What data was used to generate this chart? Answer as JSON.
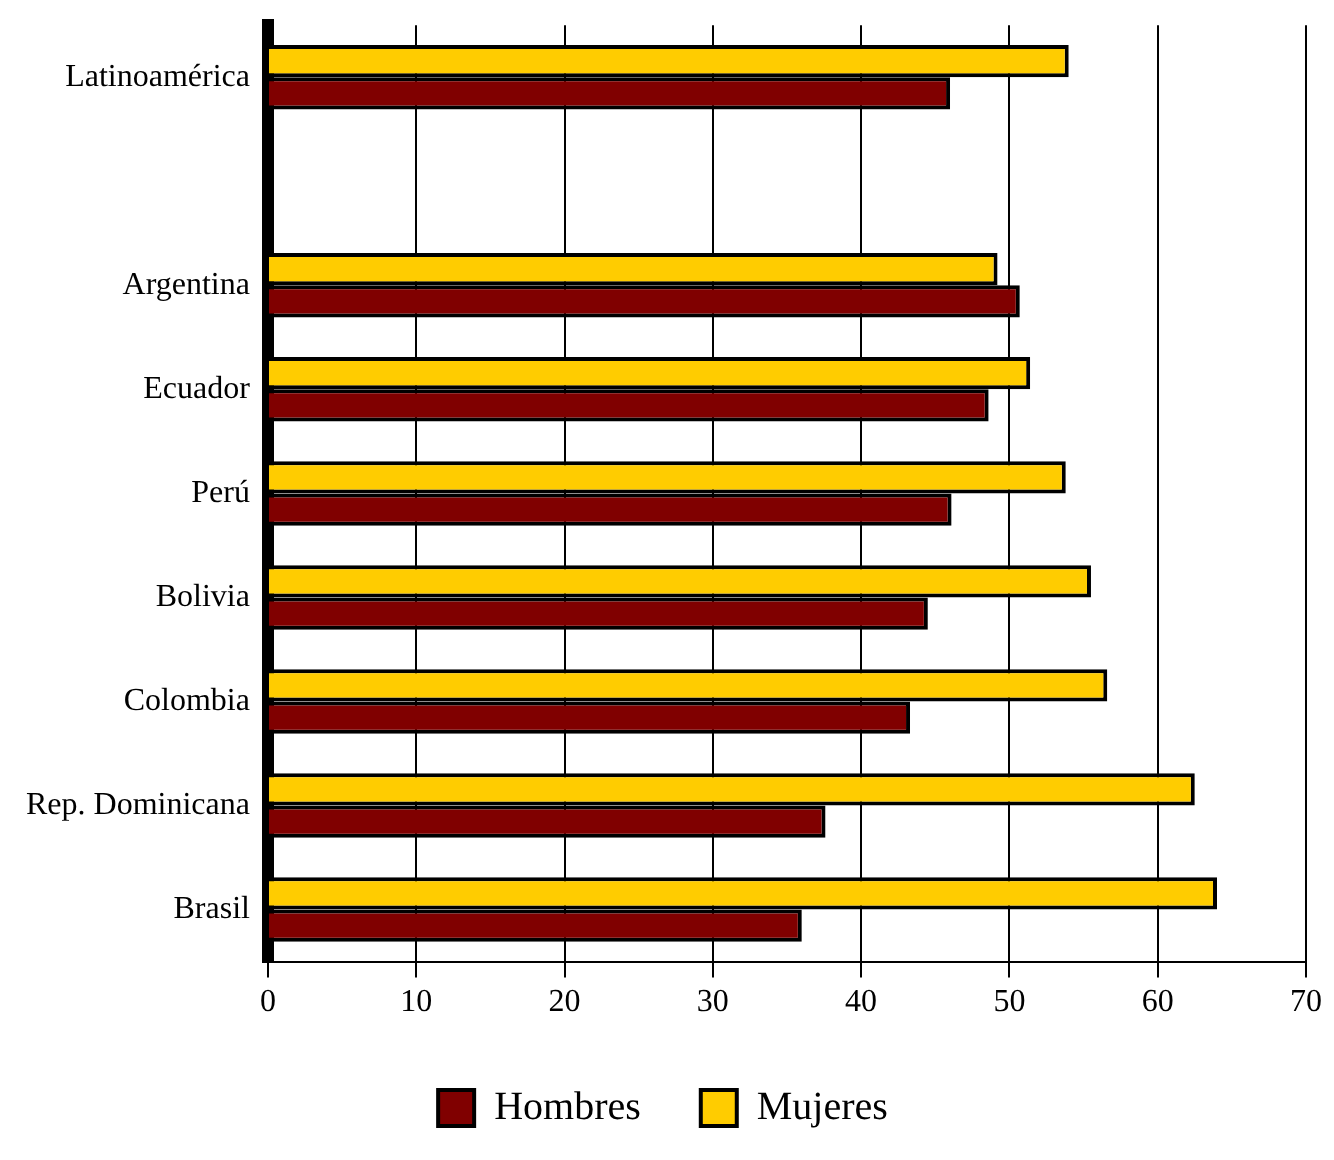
{
  "chart_data": {
    "type": "bar",
    "orientation": "horizontal",
    "categories": [
      "Latinoamérica",
      null,
      "Argentina",
      "Ecuador",
      "Perú",
      "Bolivia",
      "Colombia",
      "Rep. Dominicana",
      "Brasil"
    ],
    "series": [
      {
        "name": "Hombres",
        "color": "#800000",
        "values": [
          46,
          null,
          50.7,
          48.6,
          46.1,
          44.5,
          43.3,
          37.6,
          36
        ]
      },
      {
        "name": "Mujeres",
        "color": "#ffcc00",
        "values": [
          54,
          null,
          49.2,
          51.4,
          53.8,
          55.5,
          56.6,
          62.5,
          64
        ]
      }
    ],
    "xlim": [
      0,
      70
    ],
    "xticks": [
      0,
      10,
      20,
      30,
      40,
      50,
      60,
      70
    ],
    "grid": "x",
    "legend": "bottom"
  }
}
